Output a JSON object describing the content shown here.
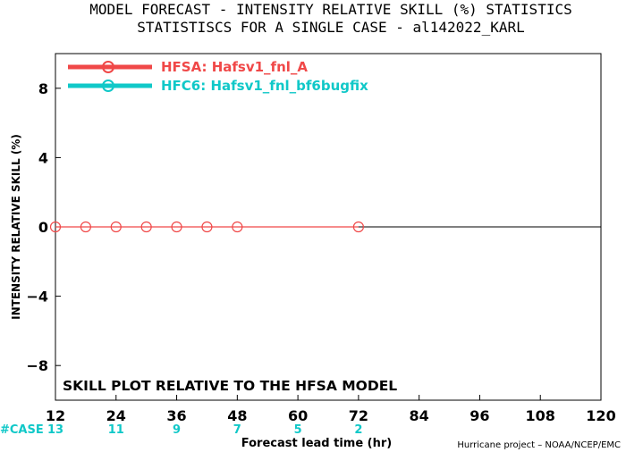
{
  "chart_data": {
    "type": "line",
    "title": "MODEL FORECAST - INTENSITY RELATIVE SKILL (%) STATISTICS",
    "subtitle": "STATISTISCS FOR A SINGLE CASE - al142022_KARL",
    "xlabel": "Forecast lead time (hr)",
    "ylabel": "INTENSITY RELATIVE SKILL (%)",
    "xlim": [
      12,
      120
    ],
    "ylim": [
      -10,
      10
    ],
    "x_ticks": [
      12,
      24,
      36,
      48,
      60,
      72,
      84,
      96,
      108,
      120
    ],
    "y_ticks": [
      -8,
      -4,
      0,
      4,
      8
    ],
    "y_tick_labels": [
      "−8",
      "−4",
      "0",
      "4",
      "8"
    ],
    "grid": false,
    "legend_position": "top-left",
    "annotation": "SKILL PLOT RELATIVE TO THE HFSA MODEL",
    "series": [
      {
        "name": "HFSA: Hafsv1_fnl_A",
        "color": "#f04848",
        "x": [
          12,
          18,
          24,
          30,
          36,
          42,
          48,
          72
        ],
        "values": [
          0,
          0,
          0,
          0,
          0,
          0,
          0,
          0
        ]
      },
      {
        "name": "HFC6: Hafsv1_fnl_bf6bugfix",
        "color": "#10c8c8",
        "x": [],
        "values": []
      }
    ],
    "case_counts": {
      "label": "#CASE",
      "color": "#10c8c8",
      "x": [
        12,
        24,
        36,
        48,
        60,
        72
      ],
      "values": [
        "13",
        "11",
        "9",
        "7",
        "5",
        "2"
      ]
    },
    "credit": "Hurricane project – NOAA/NCEP/EMC"
  }
}
